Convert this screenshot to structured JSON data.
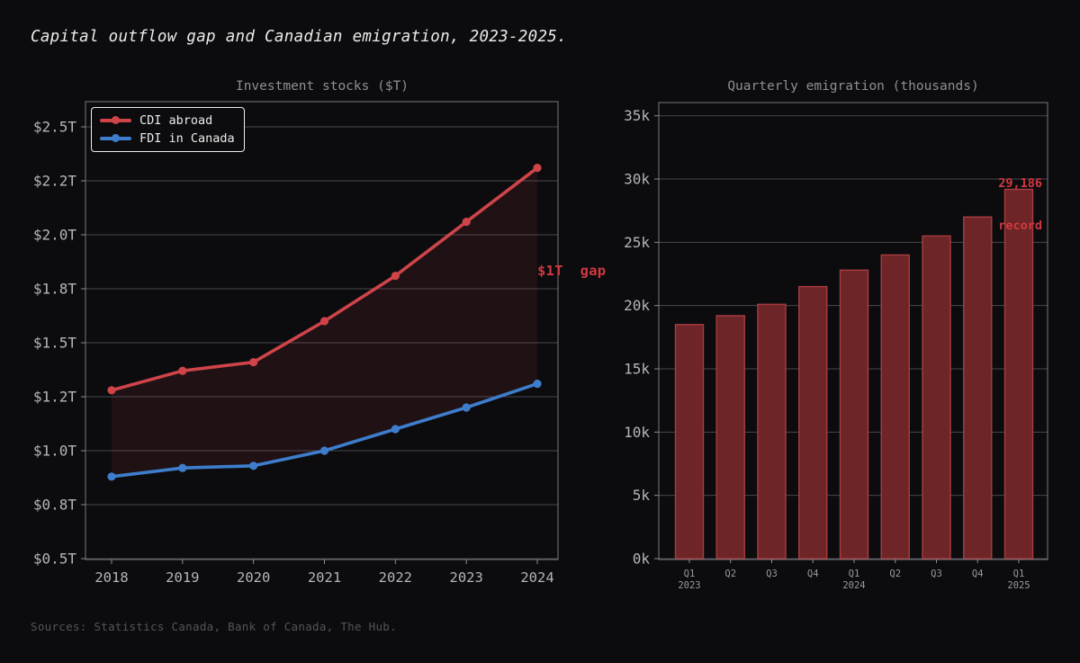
{
  "page": {
    "title": "Capital outflow gap and Canadian emigration, 2023-2025.",
    "footer": "Sources: Statistics Canada, Bank of Canada, The Hub.",
    "background_color": "#0c0c0f"
  },
  "chart_data": [
    {
      "type": "line",
      "title": "Investment stocks ($T)",
      "x": [
        2018,
        2019,
        2020,
        2021,
        2022,
        2023,
        2024
      ],
      "series": [
        {
          "name": "CDI abroad",
          "color": "#ce4449",
          "values": [
            1.28,
            1.37,
            1.41,
            1.6,
            1.81,
            2.06,
            2.31
          ]
        },
        {
          "name": "FDI in Canada",
          "color": "#3e7dcc",
          "values": [
            0.88,
            0.92,
            0.93,
            1.0,
            1.1,
            1.2,
            1.31
          ]
        }
      ],
      "fill_between": {
        "between": [
          "CDI abroad",
          "FDI in Canada"
        ],
        "color": "#ce4449",
        "opacity": 0.1
      },
      "ylim": [
        0.5,
        2.5
      ],
      "yticks": [
        {
          "v": 0.5,
          "label": "$0.5T"
        },
        {
          "v": 0.75,
          "label": "$0.8T"
        },
        {
          "v": 1.0,
          "label": "$1.0T"
        },
        {
          "v": 1.25,
          "label": "$1.2T"
        },
        {
          "v": 1.5,
          "label": "$1.5T"
        },
        {
          "v": 1.75,
          "label": "$1.8T"
        },
        {
          "v": 2.0,
          "label": "$2.0T"
        },
        {
          "v": 2.25,
          "label": "$2.2T"
        },
        {
          "v": 2.5,
          "label": "$2.5T"
        }
      ],
      "grid": "horizontal",
      "legend_position": "upper left",
      "annotation": {
        "text": "$1T  gap",
        "color": "#d2383f"
      }
    },
    {
      "type": "bar",
      "title": "Quarterly emigration (thousands)",
      "categories": [
        {
          "q": "Q1",
          "year": "2023"
        },
        {
          "q": "Q2"
        },
        {
          "q": "Q3"
        },
        {
          "q": "Q4"
        },
        {
          "q": "Q1",
          "year": "2024"
        },
        {
          "q": "Q2"
        },
        {
          "q": "Q3"
        },
        {
          "q": "Q4"
        },
        {
          "q": "Q1",
          "year": "2025"
        }
      ],
      "values": [
        18500,
        19200,
        20100,
        21500,
        22800,
        24000,
        25500,
        27000,
        29186
      ],
      "bar_color": "#6e2527",
      "bar_edge_color": "#a83c3f",
      "ylim": [
        0,
        35000
      ],
      "yticks": [
        {
          "v": 0,
          "label": "0k"
        },
        {
          "v": 5000,
          "label": "5k"
        },
        {
          "v": 10000,
          "label": "10k"
        },
        {
          "v": 15000,
          "label": "15k"
        },
        {
          "v": 20000,
          "label": "20k"
        },
        {
          "v": 25000,
          "label": "25k"
        },
        {
          "v": 30000,
          "label": "30k"
        },
        {
          "v": 35000,
          "label": "35k"
        }
      ],
      "grid": "horizontal",
      "annotation": {
        "line1": "29,186",
        "line2": "record",
        "color": "#d2383f"
      }
    }
  ],
  "axis_style": {
    "label_color": "#b5b5b9",
    "small_label_color": "#99999d",
    "grid_color": "#82828a",
    "spine_color": "#8b8b92"
  }
}
